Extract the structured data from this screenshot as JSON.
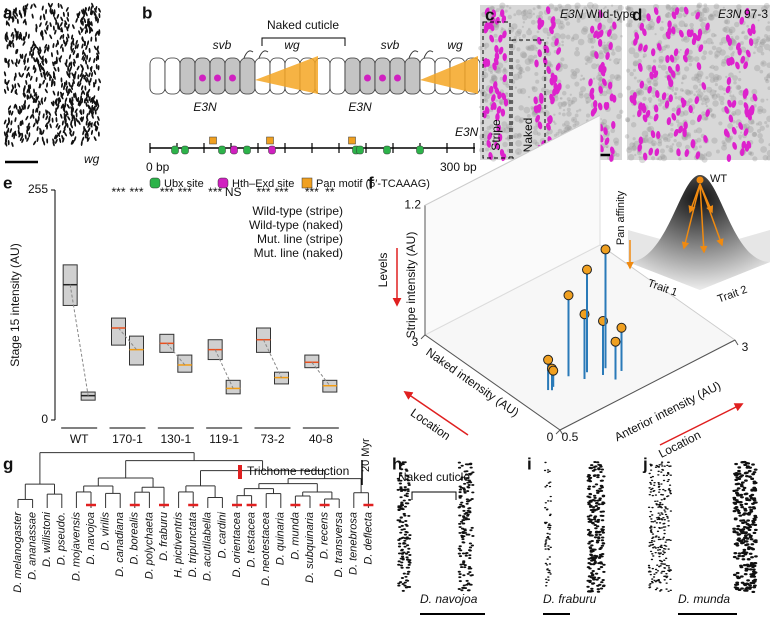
{
  "panels": {
    "a": {
      "letter": "a",
      "gene": "wg"
    },
    "b": {
      "letter": "b",
      "bracket": "Naked cuticle",
      "genes": [
        "svb",
        "wg",
        "svb",
        "wg"
      ],
      "enhancer_labels": [
        "E3N",
        "E3N"
      ],
      "track_label": "E3N",
      "start": "0 bp",
      "end": "300 bp",
      "legend": [
        "Ubx site",
        "Hth–Exd site",
        "Pan motif (5′-TCAAAG)"
      ]
    },
    "c": {
      "letter": "c",
      "enhancer": "E3N",
      "line": "Wild-type",
      "regions": [
        "Stripe",
        "Naked"
      ]
    },
    "d": {
      "letter": "d",
      "enhancer": "E3N",
      "line": "97-3"
    },
    "g": {
      "letter": "g",
      "legend": "Trichome reduction",
      "scale": "20 Myr",
      "species": [
        {
          "name": "D. melanogaster",
          "reduced": false
        },
        {
          "name": "D. ananassae",
          "reduced": false
        },
        {
          "name": "D. willistoni",
          "reduced": false
        },
        {
          "name": "D. pseudo.",
          "reduced": false
        },
        {
          "name": "D. mojavensis",
          "reduced": false
        },
        {
          "name": "D. navojoa",
          "reduced": true
        },
        {
          "name": "D. virilis",
          "reduced": false
        },
        {
          "name": "D. canadiana",
          "reduced": false
        },
        {
          "name": "D. borealis",
          "reduced": true
        },
        {
          "name": "D. polychaeta",
          "reduced": false
        },
        {
          "name": "D. fraburu",
          "reduced": true
        },
        {
          "name": "H. pictiventris",
          "reduced": false
        },
        {
          "name": "D. tripunctata",
          "reduced": true
        },
        {
          "name": "D. acutilabella",
          "reduced": false
        },
        {
          "name": "D. cardini",
          "reduced": false
        },
        {
          "name": "D. orientacea",
          "reduced": true
        },
        {
          "name": "D. testacea",
          "reduced": true
        },
        {
          "name": "D. neotestacea",
          "reduced": false
        },
        {
          "name": "D. quinaria",
          "reduced": false
        },
        {
          "name": "D. munda",
          "reduced": true
        },
        {
          "name": "D. subquinaria",
          "reduced": false
        },
        {
          "name": "D. recens",
          "reduced": true
        },
        {
          "name": "D. transversa",
          "reduced": false
        },
        {
          "name": "D. tenebrosa",
          "reduced": false
        },
        {
          "name": "D. deflecta",
          "reduced": true
        }
      ]
    },
    "h": {
      "letter": "h",
      "bracket": "Naked cuticle",
      "species": "D. navojoa"
    },
    "i": {
      "letter": "i",
      "species": "D. fraburu"
    },
    "j": {
      "letter": "j",
      "species": "D. munda"
    }
  },
  "chart_data": [
    {
      "type": "box",
      "panel": "e",
      "ylabel": "Stage 15 intensity (AU)",
      "ylim": [
        0,
        255
      ],
      "yticks": [
        0,
        255
      ],
      "categories": [
        "WT",
        "170-1",
        "130-1",
        "119-1",
        "73-2",
        "40-8"
      ],
      "legend": [
        {
          "name": "Wild-type (stripe)",
          "color": "#222222"
        },
        {
          "name": "Wild-type (naked)",
          "color": "#9a9a9a"
        },
        {
          "name": "Mut. line (stripe)",
          "color": "#e8501e"
        },
        {
          "name": "Mut. line (naked)",
          "color": "#f39c12"
        }
      ],
      "stripe": {
        "q1": [
          127,
          83,
          75,
          67,
          75,
          58
        ],
        "median": [
          150,
          102,
          85,
          78,
          89,
          64
        ],
        "q3": [
          172,
          113,
          95,
          89,
          102,
          72
        ]
      },
      "naked": {
        "q1": [
          22,
          61,
          53,
          29,
          40,
          31
        ],
        "median": [
          27,
          78,
          61,
          35,
          47,
          38
        ],
        "q3": [
          31,
          93,
          72,
          44,
          53,
          44
        ]
      },
      "significance": {
        "stripe": [
          null,
          "***",
          "***",
          "***",
          "***",
          "***"
        ],
        "naked": [
          null,
          "***",
          "***",
          "NS",
          "***",
          "**"
        ]
      }
    },
    {
      "type": "scatter3d",
      "panel": "f",
      "xlabel": "Anterior intensity (AU)",
      "ylabel": "Naked intensity (AU)",
      "zlabel": "Stripe intensity (AU)",
      "xlim": [
        0.5,
        3
      ],
      "ylim": [
        0,
        3
      ],
      "zlim": [
        0,
        1.2
      ],
      "xticks": [
        0.5,
        3
      ],
      "yticks": [
        0,
        3
      ],
      "zticks": [
        1.2
      ],
      "x": [
        0.87,
        0.9,
        0.95,
        1.2,
        1.3,
        1.4,
        1.5,
        1.6,
        1.7,
        1.55
      ],
      "y": [
        0.84,
        0.8,
        0.85,
        0.9,
        0.7,
        0.8,
        0.6,
        0.7,
        0.5,
        0.4
      ],
      "z": [
        0.28,
        0.2,
        0.15,
        0.75,
        0.6,
        0.95,
        0.5,
        1.1,
        0.4,
        0.35
      ],
      "color": "#f0a020",
      "stem_color": "#2a7ab8",
      "arrows": [
        "Levels",
        "Location",
        "Location"
      ],
      "inset": {
        "peak": "WT",
        "axis": "Pan affinity",
        "traits": [
          "Trait 1",
          "Trait 2"
        ]
      }
    }
  ]
}
